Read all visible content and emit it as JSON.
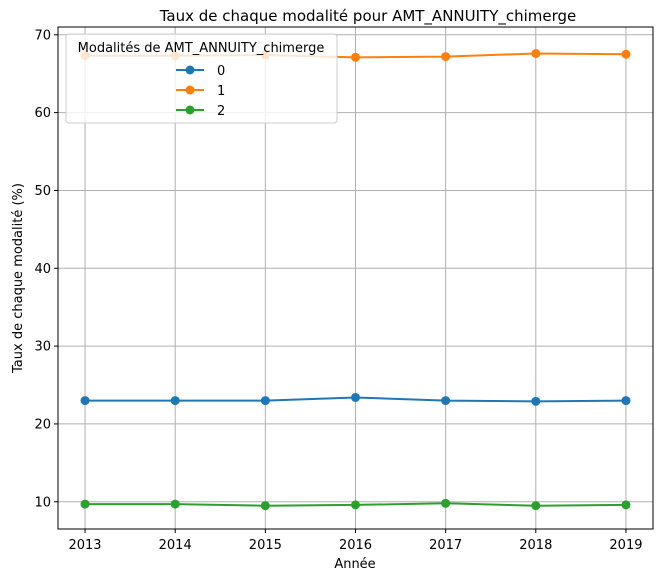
{
  "chart_data": {
    "type": "line",
    "title": "Taux de chaque modalité pour AMT_ANNUITY_chimerge",
    "xlabel": "Année",
    "ylabel": "Taux de chaque modalité (%)",
    "x": [
      2013,
      2014,
      2015,
      2016,
      2017,
      2018,
      2019
    ],
    "xticks": [
      "2013",
      "2014",
      "2015",
      "2016",
      "2017",
      "2018",
      "2019"
    ],
    "yticks": [
      "10",
      "20",
      "30",
      "40",
      "50",
      "60",
      "70"
    ],
    "ylim": [
      6.5,
      71
    ],
    "grid": true,
    "legend": {
      "title": "Modalités de AMT_ANNUITY_chimerge",
      "placement": "top-left"
    },
    "series": [
      {
        "name": "0",
        "color": "#1f77b4",
        "values": [
          23.0,
          23.0,
          23.0,
          23.4,
          23.0,
          22.9,
          23.0
        ]
      },
      {
        "name": "1",
        "color": "#ff7f0e",
        "values": [
          67.3,
          67.3,
          67.4,
          67.1,
          67.2,
          67.6,
          67.5
        ]
      },
      {
        "name": "2",
        "color": "#2ca02c",
        "values": [
          9.7,
          9.7,
          9.5,
          9.6,
          9.8,
          9.5,
          9.6
        ]
      }
    ]
  }
}
